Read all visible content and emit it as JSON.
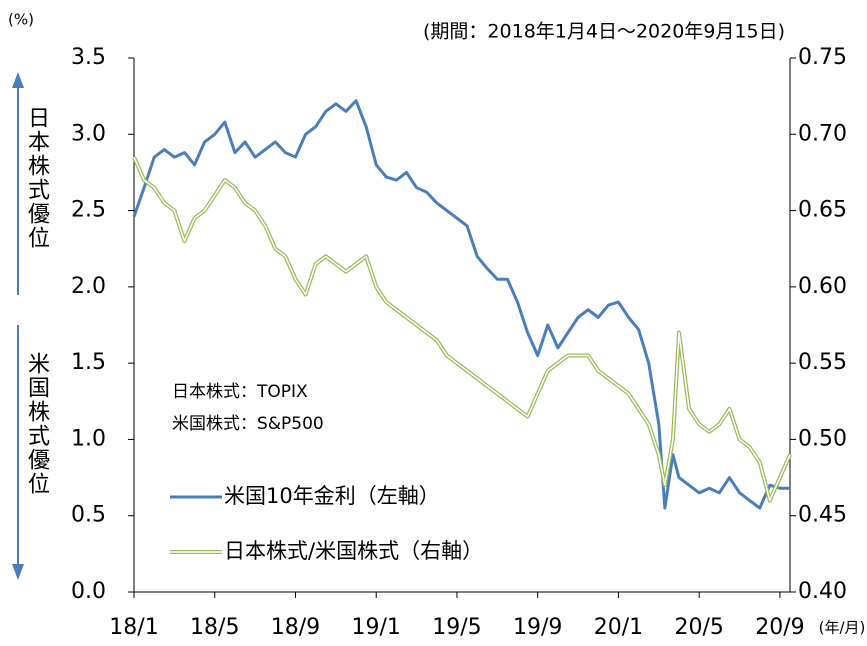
{
  "chart_data": {
    "type": "line",
    "y_unit": "(%)",
    "period": "(期間：2018年1月4日～2020年9月15日)",
    "x_unit": "(年/月)",
    "upper_label": "日本株式優位",
    "lower_label": "米国株式優位",
    "notes": [
      "日本株式：TOPIX",
      "米国株式：S&P500"
    ],
    "xlim": [
      0,
      32.5
    ],
    "xticks": [
      {
        "value": 0,
        "label": "18/1"
      },
      {
        "value": 4,
        "label": "18/5"
      },
      {
        "value": 8,
        "label": "18/9"
      },
      {
        "value": 12,
        "label": "19/1"
      },
      {
        "value": 16,
        "label": "19/5"
      },
      {
        "value": 20,
        "label": "19/9"
      },
      {
        "value": 24,
        "label": "20/1"
      },
      {
        "value": 28,
        "label": "20/5"
      },
      {
        "value": 32,
        "label": "20/9"
      }
    ],
    "ylim": [
      0,
      3.5
    ],
    "yticks": [
      {
        "value": 0,
        "label": "0.0"
      },
      0.5,
      {
        "value": 1,
        "label": "1.0"
      },
      1.5,
      {
        "value": 2,
        "label": "2.0"
      },
      2.5,
      {
        "value": 3,
        "label": "3.0"
      },
      3.5
    ],
    "y2lim": [
      0.4,
      0.75
    ],
    "y2ticks": [
      {
        "value": 0.4,
        "label": "0.40"
      },
      0.45,
      {
        "value": 0.5,
        "label": "0.50"
      },
      0.55,
      {
        "value": 0.6,
        "label": "0.60"
      },
      0.65,
      {
        "value": 0.7,
        "label": "0.70"
      },
      0.75
    ],
    "x": [
      0,
      0.5,
      1,
      1.5,
      2,
      2.5,
      3,
      3.5,
      4,
      4.5,
      5,
      5.5,
      6,
      6.5,
      7,
      7.5,
      8,
      8.5,
      9,
      9.5,
      10,
      10.5,
      11,
      11.5,
      12,
      12.5,
      13,
      13.5,
      14,
      14.5,
      15,
      15.5,
      16,
      16.5,
      17,
      17.5,
      18,
      18.5,
      19,
      19.5,
      20,
      20.5,
      21,
      21.5,
      22,
      22.5,
      23,
      23.5,
      24,
      24.5,
      25,
      25.5,
      26,
      26.3,
      26.7,
      27,
      27.5,
      28,
      28.5,
      29,
      29.5,
      30,
      30.5,
      31,
      31.5,
      32,
      32.5
    ],
    "series": [
      {
        "name": "米国10年金利（左軸）",
        "color": "#4a7ebb",
        "axis": "y",
        "values": [
          2.46,
          2.65,
          2.85,
          2.9,
          2.85,
          2.88,
          2.8,
          2.95,
          3.0,
          3.08,
          2.88,
          2.95,
          2.85,
          2.9,
          2.95,
          2.88,
          2.85,
          3.0,
          3.05,
          3.15,
          3.2,
          3.15,
          3.22,
          3.05,
          2.8,
          2.72,
          2.7,
          2.75,
          2.65,
          2.62,
          2.55,
          2.5,
          2.45,
          2.4,
          2.2,
          2.12,
          2.05,
          2.05,
          1.9,
          1.7,
          1.55,
          1.75,
          1.6,
          1.7,
          1.8,
          1.85,
          1.8,
          1.88,
          1.9,
          1.8,
          1.72,
          1.5,
          1.1,
          0.55,
          0.9,
          0.75,
          0.7,
          0.65,
          0.68,
          0.65,
          0.75,
          0.65,
          0.6,
          0.55,
          0.7,
          0.68,
          0.68
        ]
      },
      {
        "name": "日本株式/米国株式（右軸）",
        "color": "#9bbb59",
        "axis": "y2",
        "values": [
          0.685,
          0.67,
          0.665,
          0.655,
          0.65,
          0.63,
          0.645,
          0.65,
          0.66,
          0.67,
          0.665,
          0.655,
          0.65,
          0.64,
          0.625,
          0.62,
          0.605,
          0.595,
          0.615,
          0.62,
          0.615,
          0.61,
          0.615,
          0.62,
          0.6,
          0.59,
          0.585,
          0.58,
          0.575,
          0.57,
          0.565,
          0.555,
          0.55,
          0.545,
          0.54,
          0.535,
          0.53,
          0.525,
          0.52,
          0.515,
          0.53,
          0.545,
          0.55,
          0.555,
          0.555,
          0.555,
          0.545,
          0.54,
          0.535,
          0.53,
          0.52,
          0.51,
          0.49,
          0.47,
          0.5,
          0.57,
          0.52,
          0.51,
          0.505,
          0.51,
          0.52,
          0.5,
          0.495,
          0.485,
          0.46,
          0.475,
          0.49
        ]
      }
    ]
  }
}
